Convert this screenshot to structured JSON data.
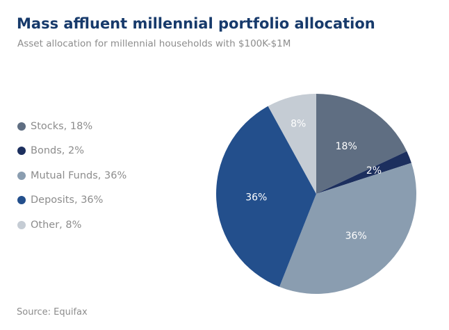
{
  "header": {
    "title": "Mass affluent millennial portfolio allocation",
    "subtitle": "Asset allocation for millennial households with $100K-$1M"
  },
  "legend": {
    "items": [
      {
        "label": "Stocks, 18%",
        "color": "#5f6e82"
      },
      {
        "label": "Bonds, 2%",
        "color": "#1c2f5e"
      },
      {
        "label": "Mutual Funds, 36%",
        "color": "#8a9db0"
      },
      {
        "label": "Deposits, 36%",
        "color": "#234f8c"
      },
      {
        "label": "Other, 8%",
        "color": "#c5ccd4"
      }
    ]
  },
  "chart_data": {
    "type": "pie",
    "title": "Mass affluent millennial portfolio allocation",
    "subtitle": "Asset allocation for millennial households with $100K-$1M",
    "legend_position": "left",
    "start_angle": "12 o'clock",
    "direction": "clockwise",
    "slices": [
      {
        "name": "Stocks",
        "value": 18,
        "label": "18%",
        "color": "#5f6e82"
      },
      {
        "name": "Bonds",
        "value": 2,
        "label": "2%",
        "color": "#1c2f5e"
      },
      {
        "name": "Mutual Funds",
        "value": 36,
        "label": "36%",
        "color": "#8a9db0"
      },
      {
        "name": "Deposits",
        "value": 36,
        "label": "36%",
        "color": "#234f8c"
      },
      {
        "name": "Other",
        "value": 8,
        "label": "8%",
        "color": "#c5ccd4"
      }
    ]
  },
  "footer": {
    "source": "Source: Equifax"
  }
}
